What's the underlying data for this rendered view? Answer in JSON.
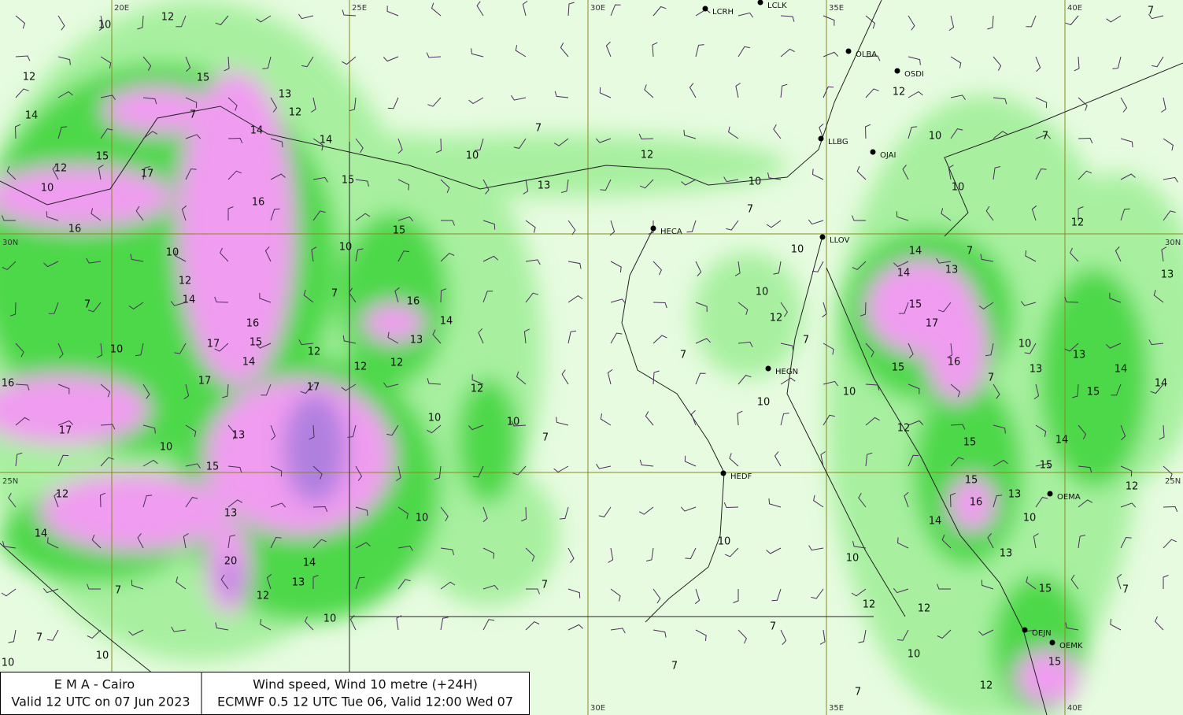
{
  "header": {
    "left": [
      "E M A  -  Cairo",
      "Valid 12 UTC on 07 Jun 2023"
    ],
    "right": [
      "Wind speed, Wind  10 metre (+24H)",
      "ECMWF 0.5 12 UTC Tue 06, Valid 12:00 Wed 07"
    ]
  },
  "grid_labels": {
    "lon": [
      "20E",
      "25E",
      "30E",
      "35E",
      "40E"
    ],
    "lat": [
      "30N",
      "25N"
    ]
  },
  "stations": [
    "LCRH",
    "LCLK",
    "OLBA",
    "OSDI",
    "LLBG",
    "OJAI",
    "HECA",
    "LLOV",
    "HEGN",
    "HEDF",
    "OEMA",
    "OEJN",
    "OEMK"
  ],
  "contour_labels": [
    10,
    12,
    12,
    15,
    14,
    7,
    13,
    12,
    14,
    14,
    15,
    12,
    17,
    10,
    15,
    16,
    16,
    15,
    10,
    10,
    12,
    14,
    7,
    7,
    16,
    17,
    15,
    10,
    14,
    12,
    17,
    16,
    17,
    12,
    12,
    16,
    14,
    13,
    17,
    10,
    13,
    15,
    12,
    10,
    10,
    7,
    12,
    14,
    13,
    10,
    14,
    20,
    13,
    12,
    7,
    10,
    7,
    10,
    10,
    7,
    10,
    12,
    13,
    10,
    7,
    10,
    10,
    12,
    7,
    7,
    10,
    10,
    10,
    7,
    7,
    7,
    10,
    12,
    12,
    10,
    7,
    12,
    10,
    10,
    7,
    12,
    14,
    14,
    13,
    7,
    15,
    17,
    16,
    15,
    7,
    10,
    13,
    13,
    14,
    14,
    15,
    14,
    12,
    15,
    15,
    16,
    13,
    15,
    10,
    12,
    14,
    13,
    15,
    7,
    15,
    12,
    13,
    7
  ]
}
